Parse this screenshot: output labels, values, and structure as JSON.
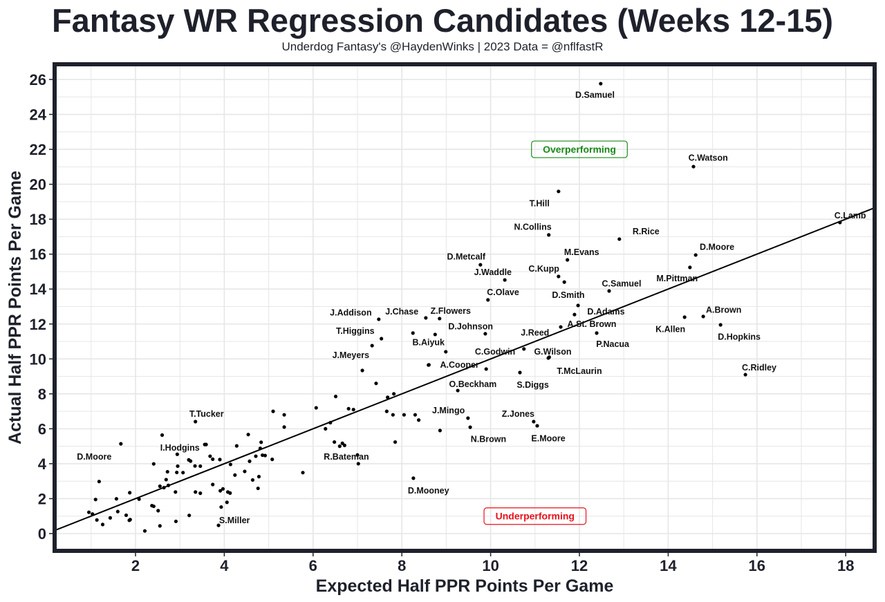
{
  "colors": {
    "frame": "#1e212b",
    "grid": "#e6e6e6",
    "point": "#000000",
    "over": "#1a8a1a",
    "under": "#e8121c"
  },
  "header": {
    "title": "Fantasy WR Regression Candidates (Weeks 12-15)",
    "subtitle": "Underdog Fantasy's @HaydenWinks | 2023 Data = @nflfastR"
  },
  "chart_data": {
    "type": "scatter",
    "title": "Fantasy WR Regression Candidates (Weeks 12-15)",
    "subtitle": "Underdog Fantasy's @HaydenWinks | 2023 Data = @nflfastR",
    "xlabel": "Expected Half PPR Points Per Game",
    "ylabel": "Actual Half PPR Points Per Game",
    "xlim": [
      0.16,
      18.65
    ],
    "ylim": [
      -1.0,
      26.8
    ],
    "xticks": [
      "2",
      "4",
      "6",
      "8",
      "10",
      "12",
      "14",
      "16",
      "18"
    ],
    "yticks": [
      "0",
      "2",
      "4",
      "6",
      "8",
      "10",
      "12",
      "14",
      "16",
      "18",
      "20",
      "22",
      "24",
      "26"
    ],
    "grid": true,
    "reference_line": {
      "slope": 1.0,
      "intercept": 0.0
    },
    "annotations": [
      {
        "text": "Overperforming",
        "x": 12.0,
        "y": 22.0,
        "kind": "over"
      },
      {
        "text": "Underperforming",
        "x": 11.0,
        "y": 1.0,
        "kind": "under"
      }
    ],
    "labeled_points": [
      {
        "name": "D.Samuel",
        "x": 12.48,
        "y": 25.76,
        "lx": 12.35,
        "ly": 25.1
      },
      {
        "name": "C.Watson",
        "x": 14.57,
        "y": 21.01,
        "lx": 14.9,
        "ly": 21.5
      },
      {
        "name": "T.Hill",
        "x": 11.53,
        "y": 19.59,
        "lx": 11.1,
        "ly": 18.9
      },
      {
        "name": "C.Lamb",
        "x": 17.87,
        "y": 17.81,
        "lx": 18.1,
        "ly": 18.2
      },
      {
        "name": "N.Collins",
        "x": 11.31,
        "y": 17.1,
        "lx": 10.95,
        "ly": 17.55
      },
      {
        "name": "R.Rice",
        "x": 12.9,
        "y": 16.86,
        "lx": 13.5,
        "ly": 17.3
      },
      {
        "name": "D.Moore",
        "x": 14.62,
        "y": 15.95,
        "lx": 15.1,
        "ly": 16.4
      },
      {
        "name": "M.Evans",
        "x": 11.73,
        "y": 15.67,
        "lx": 12.05,
        "ly": 16.1
      },
      {
        "name": "D.Metcalf",
        "x": 9.77,
        "y": 15.39,
        "lx": 9.45,
        "ly": 15.85
      },
      {
        "name": "M.Pittman",
        "x": 14.49,
        "y": 15.24,
        "lx": 14.2,
        "ly": 14.6
      },
      {
        "name": "C.Kupp",
        "x": 11.53,
        "y": 14.72,
        "lx": 11.2,
        "ly": 15.15
      },
      {
        "name": "J.Waddle",
        "x": 10.32,
        "y": 14.52,
        "lx": 10.05,
        "ly": 14.95
      },
      {
        "name": "D.Smith",
        "x": 11.66,
        "y": 14.4,
        "lx": 11.75,
        "ly": 13.65
      },
      {
        "name": "C.Samuel",
        "x": 12.67,
        "y": 13.89,
        "lx": 12.95,
        "ly": 14.3
      },
      {
        "name": "C.Olave",
        "x": 9.94,
        "y": 13.38,
        "lx": 10.28,
        "ly": 13.82
      },
      {
        "name": "D.Adams",
        "x": 11.97,
        "y": 13.06,
        "lx": 12.6,
        "ly": 12.7
      },
      {
        "name": "A.St. Brown",
        "x": 11.89,
        "y": 12.54,
        "lx": 12.28,
        "ly": 12.0
      },
      {
        "name": "J.Reed",
        "x": 11.58,
        "y": 11.83,
        "lx": 11.0,
        "ly": 11.5
      },
      {
        "name": "J.Addison",
        "x": 7.48,
        "y": 12.27,
        "lx": 6.85,
        "ly": 12.65
      },
      {
        "name": "J.Chase",
        "x": 8.54,
        "y": 12.35,
        "lx": 8.0,
        "ly": 12.7
      },
      {
        "name": "Z.Flowers",
        "x": 8.85,
        "y": 12.31,
        "lx": 9.1,
        "ly": 12.75
      },
      {
        "name": "K.Allen",
        "x": 14.37,
        "y": 12.39,
        "lx": 14.05,
        "ly": 11.7
      },
      {
        "name": "A.Brown",
        "x": 14.79,
        "y": 12.43,
        "lx": 15.25,
        "ly": 12.8
      },
      {
        "name": "D.Hopkins",
        "x": 15.18,
        "y": 11.95,
        "lx": 15.6,
        "ly": 11.25
      },
      {
        "name": "T.Higgins",
        "x": 7.54,
        "y": 11.16,
        "lx": 6.95,
        "ly": 11.6
      },
      {
        "name": "D.Johnson",
        "x": 9.88,
        "y": 11.44,
        "lx": 9.55,
        "ly": 11.85
      },
      {
        "name": "B.Aiyuk",
        "x": 8.99,
        "y": 10.41,
        "lx": 8.6,
        "ly": 10.95
      },
      {
        "name": "P.Nacua",
        "x": 12.39,
        "y": 11.48,
        "lx": 12.75,
        "ly": 10.85
      },
      {
        "name": "C.Godwin",
        "x": 10.75,
        "y": 10.57,
        "lx": 10.1,
        "ly": 10.4
      },
      {
        "name": "G.Wilson",
        "x": 11.3,
        "y": 10.05,
        "lx": 11.4,
        "ly": 10.4
      },
      {
        "name": "T.McLaurin",
        "x": 11.32,
        "y": 10.1,
        "lx": 12.0,
        "ly": 9.3
      },
      {
        "name": "A.Cooper",
        "x": 8.61,
        "y": 9.66,
        "lx": 9.3,
        "ly": 9.65
      },
      {
        "name": "J.Meyers",
        "x": 7.11,
        "y": 9.34,
        "lx": 6.85,
        "ly": 10.2
      },
      {
        "name": "S.Diggs",
        "x": 10.66,
        "y": 9.22,
        "lx": 10.95,
        "ly": 8.5
      },
      {
        "name": "C.Ridley",
        "x": 15.74,
        "y": 9.1,
        "lx": 16.05,
        "ly": 9.5
      },
      {
        "name": "O.Beckham",
        "x": 9.26,
        "y": 8.19,
        "lx": 9.6,
        "ly": 8.55
      },
      {
        "name": "J.Mingo",
        "x": 9.49,
        "y": 6.61,
        "lx": 9.05,
        "ly": 7.05
      },
      {
        "name": "N.Brown",
        "x": 9.54,
        "y": 6.09,
        "lx": 9.95,
        "ly": 5.4
      },
      {
        "name": "Z.Jones",
        "x": 10.97,
        "y": 6.41,
        "lx": 10.62,
        "ly": 6.85
      },
      {
        "name": "E.Moore",
        "x": 11.05,
        "y": 6.17,
        "lx": 11.3,
        "ly": 5.45
      },
      {
        "name": "D.Mooney",
        "x": 8.26,
        "y": 3.17,
        "lx": 8.6,
        "ly": 2.45
      },
      {
        "name": "R.Bateman",
        "x": 7.0,
        "y": 4.5,
        "lx": 6.75,
        "ly": 4.4
      },
      {
        "name": "T.Tucker",
        "x": 3.35,
        "y": 6.41,
        "lx": 3.6,
        "ly": 6.85
      },
      {
        "name": "I.Hodgins",
        "x": 3.59,
        "y": 5.1,
        "lx": 3.0,
        "ly": 4.9
      },
      {
        "name": "D.Moore",
        "x": 1.67,
        "y": 5.14,
        "lx": 1.07,
        "ly": 4.4
      },
      {
        "name": "S.Miller",
        "x": 3.87,
        "y": 0.47,
        "lx": 4.23,
        "ly": 0.75
      }
    ],
    "other_points": [
      [
        0.95,
        1.22
      ],
      [
        1.03,
        1.12
      ],
      [
        1.1,
        1.95
      ],
      [
        1.13,
        0.78
      ],
      [
        1.18,
        2.98
      ],
      [
        1.26,
        0.52
      ],
      [
        1.43,
        0.9
      ],
      [
        1.57,
        1.99
      ],
      [
        1.6,
        1.26
      ],
      [
        1.79,
        1.05
      ],
      [
        1.86,
        0.76
      ],
      [
        1.88,
        0.8
      ],
      [
        1.87,
        2.34
      ],
      [
        2.08,
        1.97
      ],
      [
        2.21,
        0.15
      ],
      [
        2.37,
        1.6
      ],
      [
        2.41,
        1.56
      ],
      [
        2.41,
        3.99
      ],
      [
        2.51,
        1.31
      ],
      [
        2.55,
        0.44
      ],
      [
        2.55,
        2.71
      ],
      [
        2.6,
        5.64
      ],
      [
        2.64,
        2.63
      ],
      [
        2.69,
        3.09
      ],
      [
        2.72,
        3.54
      ],
      [
        2.74,
        2.76
      ],
      [
        2.9,
        2.38
      ],
      [
        2.91,
        0.7
      ],
      [
        2.93,
        3.5
      ],
      [
        2.94,
        4.54
      ],
      [
        2.95,
        3.86
      ],
      [
        3.07,
        3.49
      ],
      [
        3.2,
        4.22
      ],
      [
        3.24,
        4.15
      ],
      [
        3.21,
        1.04
      ],
      [
        3.34,
        3.87
      ],
      [
        3.35,
        2.38
      ],
      [
        3.46,
        2.31
      ],
      [
        3.46,
        3.86
      ],
      [
        3.56,
        5.1
      ],
      [
        3.68,
        4.43
      ],
      [
        3.74,
        2.81
      ],
      [
        3.74,
        4.26
      ],
      [
        3.9,
        4.24
      ],
      [
        3.91,
        2.45
      ],
      [
        3.93,
        1.52
      ],
      [
        3.97,
        2.56
      ],
      [
        4.06,
        1.79
      ],
      [
        4.08,
        2.38
      ],
      [
        4.13,
        2.32
      ],
      [
        4.14,
        3.96
      ],
      [
        4.24,
        3.35
      ],
      [
        4.28,
        5.02
      ],
      [
        4.46,
        3.56
      ],
      [
        4.54,
        5.67
      ],
      [
        4.57,
        4.14
      ],
      [
        4.64,
        3.07
      ],
      [
        4.71,
        4.43
      ],
      [
        4.76,
        2.59
      ],
      [
        4.78,
        3.26
      ],
      [
        4.81,
        4.88
      ],
      [
        4.83,
        5.23
      ],
      [
        4.86,
        4.49
      ],
      [
        4.92,
        4.47
      ],
      [
        5.1,
        7.0
      ],
      [
        5.08,
        4.25
      ],
      [
        5.35,
        6.8
      ],
      [
        5.35,
        6.1
      ],
      [
        5.77,
        3.49
      ],
      [
        6.07,
        7.2
      ],
      [
        6.28,
        6.0
      ],
      [
        6.39,
        6.35
      ],
      [
        6.51,
        7.85
      ],
      [
        6.48,
        5.24
      ],
      [
        6.6,
        5.0
      ],
      [
        6.66,
        5.17
      ],
      [
        6.71,
        5.05
      ],
      [
        6.8,
        7.15
      ],
      [
        6.91,
        7.1
      ],
      [
        7.02,
        4.0
      ],
      [
        7.68,
        7.8
      ],
      [
        7.82,
        8.0
      ],
      [
        7.66,
        7.0
      ],
      [
        7.8,
        6.8
      ],
      [
        7.85,
        5.24
      ],
      [
        8.05,
        6.8
      ],
      [
        8.3,
        6.8
      ],
      [
        8.38,
        6.5
      ],
      [
        8.6,
        9.65
      ],
      [
        8.86,
        5.9
      ],
      [
        8.25,
        11.48
      ],
      [
        8.75,
        11.4
      ],
      [
        7.33,
        10.76
      ],
      [
        9.9,
        9.42
      ],
      [
        7.42,
        8.6
      ]
    ]
  }
}
